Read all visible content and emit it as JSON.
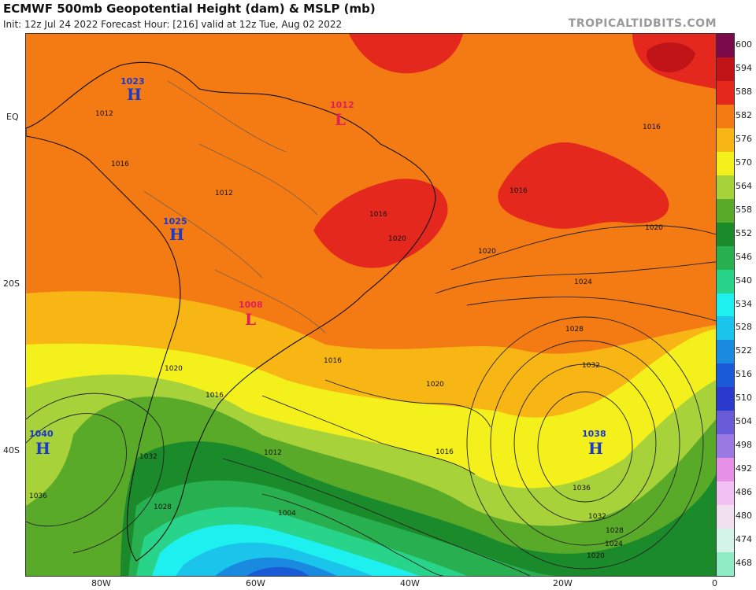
{
  "header": {
    "title": "ECMWF 500mb Geopotential Height (dam) & MSLP (mb)",
    "subtitle": "Init: 12z Jul 24 2022   Forecast Hour: [216]   valid at 12z Tue, Aug 02 2022",
    "watermark": "TROPICALTIDBITS.COM"
  },
  "axes": {
    "lat_labels": [
      "EQ",
      "20S",
      "40S"
    ],
    "lon_labels": [
      "80W",
      "60W",
      "40W",
      "20W",
      "0"
    ]
  },
  "colorbar": {
    "levels": [
      "600",
      "594",
      "588",
      "582",
      "576",
      "570",
      "564",
      "558",
      "552",
      "546",
      "540",
      "534",
      "528",
      "522",
      "516",
      "510",
      "504",
      "498",
      "492",
      "486",
      "480",
      "474",
      "468"
    ],
    "colors": [
      "#7a0a4a",
      "#c01418",
      "#e4281e",
      "#f47a14",
      "#f8b614",
      "#f4f01c",
      "#a8d23a",
      "#5aaa2a",
      "#1a8a2a",
      "#28b050",
      "#28d48a",
      "#1ef0f0",
      "#1ac4ea",
      "#1a8ae0",
      "#1a5ad6",
      "#2a3acc",
      "#6a5cd8",
      "#9a7ae2",
      "#e690e8",
      "#f2c0f2",
      "#f0e0f0",
      "#d4f4ea",
      "#90ecc4"
    ]
  },
  "pressure_centers": [
    {
      "type": "H",
      "value": "1023",
      "color": "#1a3acc"
    },
    {
      "type": "L",
      "value": "1012",
      "color": "#e0205a"
    },
    {
      "type": "H",
      "value": "1025",
      "color": "#1a3acc"
    },
    {
      "type": "L",
      "value": "1008",
      "color": "#e0205a"
    },
    {
      "type": "H",
      "value": "1040",
      "color": "#1a3acc"
    },
    {
      "type": "H",
      "value": "1038",
      "color": "#1a3acc"
    }
  ],
  "isobar_labels": [
    "1012",
    "1016",
    "1016",
    "1016",
    "1016",
    "1020",
    "1020",
    "1020",
    "1020",
    "1024",
    "1028",
    "1032",
    "1016",
    "1016",
    "1020",
    "1016",
    "1012",
    "1004",
    "1036",
    "1032",
    "1028",
    "1024",
    "1020",
    "1036",
    "1032",
    "1028",
    "1012"
  ]
}
